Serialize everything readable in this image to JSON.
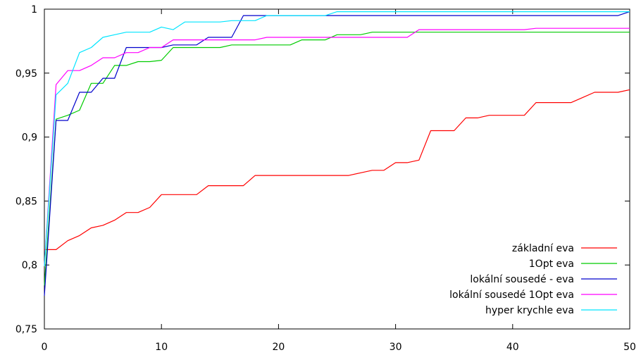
{
  "chart_data": {
    "type": "line",
    "title": "",
    "xlabel": "",
    "ylabel": "",
    "xlim": [
      0,
      50
    ],
    "ylim": [
      0.75,
      1
    ],
    "x_ticks": [
      0,
      10,
      20,
      30,
      40,
      50
    ],
    "x_tick_labels": [
      "0",
      "10",
      "20",
      "30",
      "40",
      "50"
    ],
    "y_ticks": [
      0.75,
      0.8,
      0.85,
      0.9,
      0.95,
      1
    ],
    "y_tick_labels": [
      "0,75",
      "0,8",
      "0,85",
      "0,9",
      "0,95",
      "1"
    ],
    "grid": false,
    "legend_position": "bottom-right",
    "series": [
      {
        "name": "základní eva",
        "color": "#ff0000",
        "points": [
          [
            0,
            0.812
          ],
          [
            1,
            0.812
          ],
          [
            2,
            0.819
          ],
          [
            3,
            0.823
          ],
          [
            4,
            0.829
          ],
          [
            5,
            0.831
          ],
          [
            6,
            0.835
          ],
          [
            7,
            0.841
          ],
          [
            8,
            0.841
          ],
          [
            9,
            0.845
          ],
          [
            10,
            0.855
          ],
          [
            11,
            0.855
          ],
          [
            12,
            0.855
          ],
          [
            13,
            0.855
          ],
          [
            14,
            0.862
          ],
          [
            15,
            0.862
          ],
          [
            16,
            0.862
          ],
          [
            17,
            0.862
          ],
          [
            18,
            0.87
          ],
          [
            19,
            0.87
          ],
          [
            20,
            0.87
          ],
          [
            21,
            0.87
          ],
          [
            22,
            0.87
          ],
          [
            23,
            0.87
          ],
          [
            24,
            0.87
          ],
          [
            25,
            0.87
          ],
          [
            26,
            0.87
          ],
          [
            27,
            0.872
          ],
          [
            28,
            0.874
          ],
          [
            29,
            0.874
          ],
          [
            30,
            0.88
          ],
          [
            31,
            0.88
          ],
          [
            32,
            0.882
          ],
          [
            33,
            0.905
          ],
          [
            34,
            0.905
          ],
          [
            35,
            0.905
          ],
          [
            36,
            0.915
          ],
          [
            37,
            0.915
          ],
          [
            38,
            0.917
          ],
          [
            39,
            0.917
          ],
          [
            40,
            0.917
          ],
          [
            41,
            0.917
          ],
          [
            42,
            0.927
          ],
          [
            43,
            0.927
          ],
          [
            44,
            0.927
          ],
          [
            45,
            0.927
          ],
          [
            46,
            0.931
          ],
          [
            47,
            0.935
          ],
          [
            48,
            0.935
          ],
          [
            49,
            0.935
          ],
          [
            50,
            0.937
          ]
        ]
      },
      {
        "name": "1Opt eva",
        "color": "#00cc00",
        "points": [
          [
            0,
            0.784
          ],
          [
            1,
            0.914
          ],
          [
            2,
            0.917
          ],
          [
            3,
            0.921
          ],
          [
            4,
            0.942
          ],
          [
            5,
            0.942
          ],
          [
            6,
            0.956
          ],
          [
            7,
            0.956
          ],
          [
            8,
            0.959
          ],
          [
            9,
            0.959
          ],
          [
            10,
            0.96
          ],
          [
            11,
            0.97
          ],
          [
            12,
            0.97
          ],
          [
            13,
            0.97
          ],
          [
            14,
            0.97
          ],
          [
            15,
            0.97
          ],
          [
            16,
            0.972
          ],
          [
            17,
            0.972
          ],
          [
            18,
            0.972
          ],
          [
            19,
            0.972
          ],
          [
            20,
            0.972
          ],
          [
            21,
            0.972
          ],
          [
            22,
            0.976
          ],
          [
            23,
            0.976
          ],
          [
            24,
            0.976
          ],
          [
            25,
            0.98
          ],
          [
            26,
            0.98
          ],
          [
            27,
            0.98
          ],
          [
            28,
            0.982
          ],
          [
            29,
            0.982
          ],
          [
            30,
            0.982
          ],
          [
            31,
            0.982
          ],
          [
            32,
            0.982
          ],
          [
            33,
            0.982
          ],
          [
            50,
            0.982
          ]
        ]
      },
      {
        "name": "lokální sousedé - eva",
        "color": "#0000cc",
        "points": [
          [
            0,
            0.776
          ],
          [
            1,
            0.913
          ],
          [
            2,
            0.913
          ],
          [
            3,
            0.935
          ],
          [
            4,
            0.935
          ],
          [
            5,
            0.946
          ],
          [
            6,
            0.946
          ],
          [
            7,
            0.97
          ],
          [
            8,
            0.97
          ],
          [
            9,
            0.97
          ],
          [
            10,
            0.97
          ],
          [
            11,
            0.972
          ],
          [
            12,
            0.972
          ],
          [
            13,
            0.972
          ],
          [
            14,
            0.978
          ],
          [
            15,
            0.978
          ],
          [
            16,
            0.978
          ],
          [
            17,
            0.995
          ],
          [
            18,
            0.995
          ],
          [
            19,
            0.995
          ],
          [
            20,
            0.995
          ],
          [
            25,
            0.995
          ],
          [
            30,
            0.995
          ],
          [
            40,
            0.995
          ],
          [
            49,
            0.995
          ],
          [
            50,
            0.998
          ]
        ]
      },
      {
        "name": "lokální sousedé 1Opt eva",
        "color": "#ff00ff",
        "points": [
          [
            0,
            0.799
          ],
          [
            1,
            0.941
          ],
          [
            2,
            0.952
          ],
          [
            3,
            0.952
          ],
          [
            4,
            0.956
          ],
          [
            5,
            0.962
          ],
          [
            6,
            0.962
          ],
          [
            7,
            0.966
          ],
          [
            8,
            0.966
          ],
          [
            9,
            0.97
          ],
          [
            10,
            0.97
          ],
          [
            11,
            0.976
          ],
          [
            12,
            0.976
          ],
          [
            13,
            0.976
          ],
          [
            14,
            0.976
          ],
          [
            15,
            0.976
          ],
          [
            16,
            0.976
          ],
          [
            17,
            0.976
          ],
          [
            18,
            0.976
          ],
          [
            19,
            0.978
          ],
          [
            20,
            0.978
          ],
          [
            25,
            0.978
          ],
          [
            30,
            0.978
          ],
          [
            31,
            0.978
          ],
          [
            32,
            0.984
          ],
          [
            33,
            0.984
          ],
          [
            40,
            0.984
          ],
          [
            41,
            0.984
          ],
          [
            42,
            0.985
          ],
          [
            50,
            0.985
          ]
        ]
      },
      {
        "name": "hyper krychle eva",
        "color": "#00e5ff",
        "points": [
          [
            0,
            0.799
          ],
          [
            1,
            0.933
          ],
          [
            2,
            0.942
          ],
          [
            3,
            0.966
          ],
          [
            4,
            0.97
          ],
          [
            5,
            0.978
          ],
          [
            6,
            0.98
          ],
          [
            7,
            0.982
          ],
          [
            8,
            0.982
          ],
          [
            9,
            0.982
          ],
          [
            10,
            0.986
          ],
          [
            11,
            0.984
          ],
          [
            12,
            0.99
          ],
          [
            13,
            0.99
          ],
          [
            14,
            0.99
          ],
          [
            15,
            0.99
          ],
          [
            16,
            0.991
          ],
          [
            17,
            0.991
          ],
          [
            18,
            0.991
          ],
          [
            19,
            0.995
          ],
          [
            20,
            0.995
          ],
          [
            21,
            0.995
          ],
          [
            22,
            0.995
          ],
          [
            23,
            0.995
          ],
          [
            24,
            0.995
          ],
          [
            25,
            0.998
          ],
          [
            30,
            0.998
          ],
          [
            40,
            0.998
          ],
          [
            50,
            0.998
          ]
        ]
      }
    ]
  }
}
